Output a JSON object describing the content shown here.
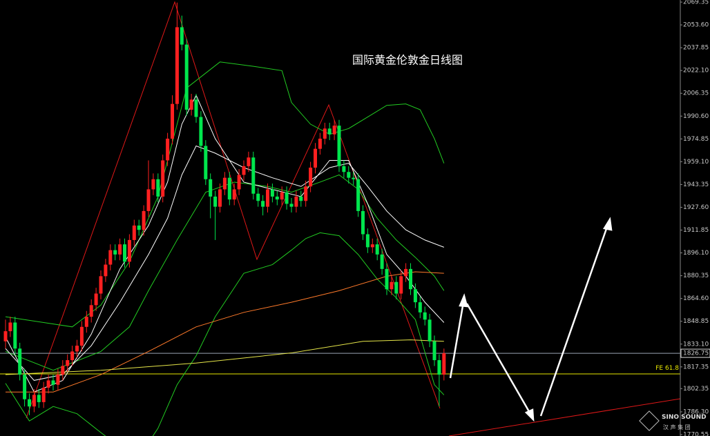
{
  "chart_data": {
    "type": "candlestick",
    "title": "国际黄金伦敦金日线图",
    "ylim": [
      1769.6,
      2070.8
    ],
    "yticks": [
      {
        "value": 2069.35,
        "label": "2069.35"
      },
      {
        "value": 2053.6,
        "label": "2053.60"
      },
      {
        "value": 2037.85,
        "label": "2037.85"
      },
      {
        "value": 2022.1,
        "label": "2022.10"
      },
      {
        "value": 2006.35,
        "label": "2006.35"
      },
      {
        "value": 1990.6,
        "label": "1990.60"
      },
      {
        "value": 1974.85,
        "label": "1974.85"
      },
      {
        "value": 1959.1,
        "label": "1959.10"
      },
      {
        "value": 1943.35,
        "label": "1943.35"
      },
      {
        "value": 1927.6,
        "label": "1927.60"
      },
      {
        "value": 1911.85,
        "label": "1911.85"
      },
      {
        "value": 1896.1,
        "label": "1896.10"
      },
      {
        "value": 1880.35,
        "label": "1880.35"
      },
      {
        "value": 1864.6,
        "label": "1864.60"
      },
      {
        "value": 1848.85,
        "label": "1848.85"
      },
      {
        "value": 1833.1,
        "label": "1833.10"
      },
      {
        "value": 1817.35,
        "label": "1817.35"
      },
      {
        "value": 1802.35,
        "label": "1802.35"
      },
      {
        "value": 1786.3,
        "label": "1786.30"
      },
      {
        "value": 1770.55,
        "label": "1770.55"
      }
    ],
    "up_color": "#ff2020",
    "down_color": "#00e64d",
    "open": [
      1835,
      1842,
      1848,
      1830,
      1812,
      1795,
      1790,
      1798,
      1793,
      1803,
      1808,
      1805,
      1812,
      1818,
      1822,
      1828,
      1832,
      1845,
      1852,
      1860,
      1868,
      1880,
      1888,
      1898,
      1895,
      1902,
      1890,
      1905,
      1915,
      1912,
      1925,
      1940,
      1947,
      1935,
      1960,
      1975,
      1999,
      2052,
      2040,
      1995,
      2002,
      1990,
      1970,
      1947,
      1935,
      1928,
      1940,
      1948,
      1933,
      1940,
      1950,
      1956,
      1962,
      1937,
      1932,
      1928,
      1940,
      1935,
      1933,
      1938,
      1930,
      1928,
      1935,
      1932,
      1942,
      1955,
      1968,
      1975,
      1982,
      1978,
      1984,
      1956,
      1952,
      1948,
      1947,
      1925,
      1909,
      1900,
      1902,
      1895,
      1885,
      1871,
      1876,
      1868,
      1880,
      1885,
      1871,
      1862,
      1855,
      1850,
      1835,
      1822,
      1812
    ],
    "high": [
      1850,
      1852,
      1852,
      1834,
      1816,
      1799,
      1802,
      1802,
      1807,
      1812,
      1812,
      1816,
      1822,
      1826,
      1832,
      1836,
      1849,
      1856,
      1864,
      1872,
      1884,
      1892,
      1902,
      1902,
      1906,
      1906,
      1909,
      1919,
      1919,
      1929,
      1960,
      1951,
      1951,
      1964,
      1979,
      2005,
      2069,
      2060,
      2044,
      2006,
      2006,
      1994,
      1974,
      1951,
      1939,
      1944,
      1952,
      1952,
      1944,
      1954,
      1960,
      1966,
      1966,
      1941,
      1936,
      1944,
      1944,
      1939,
      1942,
      1942,
      1934,
      1939,
      1939,
      1946,
      1959,
      1972,
      1979,
      1986,
      1986,
      1988,
      1988,
      1960,
      1956,
      1952,
      1951,
      1929,
      1913,
      1906,
      1906,
      1899,
      1889,
      1880,
      1880,
      1884,
      1889,
      1889,
      1875,
      1866,
      1859,
      1854,
      1839,
      1826,
      1830
    ],
    "low": [
      1830,
      1838,
      1826,
      1808,
      1790,
      1784,
      1786,
      1789,
      1789,
      1799,
      1801,
      1801,
      1808,
      1814,
      1818,
      1824,
      1828,
      1841,
      1848,
      1856,
      1864,
      1876,
      1884,
      1891,
      1891,
      1886,
      1886,
      1901,
      1908,
      1908,
      1921,
      1936,
      1931,
      1931,
      1956,
      1971,
      1995,
      2036,
      1991,
      1991,
      1986,
      1966,
      1943,
      1920,
      1905,
      1924,
      1936,
      1929,
      1929,
      1936,
      1946,
      1952,
      1933,
      1928,
      1922,
      1924,
      1931,
      1929,
      1929,
      1926,
      1924,
      1924,
      1928,
      1928,
      1938,
      1951,
      1964,
      1971,
      1974,
      1974,
      1952,
      1948,
      1944,
      1943,
      1921,
      1905,
      1896,
      1896,
      1891,
      1881,
      1867,
      1867,
      1864,
      1864,
      1876,
      1867,
      1858,
      1851,
      1846,
      1831,
      1818,
      1790,
      1808
    ],
    "close": [
      1842,
      1848,
      1830,
      1812,
      1795,
      1790,
      1798,
      1793,
      1803,
      1808,
      1805,
      1812,
      1818,
      1822,
      1828,
      1832,
      1845,
      1852,
      1860,
      1868,
      1880,
      1888,
      1898,
      1895,
      1902,
      1890,
      1905,
      1915,
      1912,
      1925,
      1940,
      1947,
      1935,
      1960,
      1975,
      1999,
      2052,
      2040,
      1995,
      2002,
      1990,
      1970,
      1947,
      1935,
      1928,
      1940,
      1948,
      1933,
      1940,
      1950,
      1956,
      1962,
      1937,
      1932,
      1928,
      1940,
      1935,
      1933,
      1938,
      1930,
      1928,
      1935,
      1932,
      1942,
      1955,
      1968,
      1975,
      1982,
      1978,
      1984,
      1956,
      1952,
      1948,
      1947,
      1925,
      1909,
      1900,
      1902,
      1895,
      1885,
      1871,
      1876,
      1868,
      1880,
      1885,
      1871,
      1862,
      1855,
      1850,
      1835,
      1822,
      1812,
      1826.75
    ],
    "lines": [
      {
        "color": "#22cc22",
        "x": [
          0,
          8,
          14,
          20,
          26,
          32,
          38,
          45,
          52,
          58,
          60,
          64,
          68,
          72,
          76,
          80,
          84,
          87,
          90,
          92
        ],
        "values": [
          1852,
          1848,
          1845,
          1860,
          1890,
          1935,
          2010,
          2028,
          2025,
          2022,
          2000,
          1985,
          1978,
          1982,
          1990,
          1998,
          1999,
          1995,
          1975,
          1958
        ]
      },
      {
        "color": "#22cc22",
        "x": [
          0,
          5,
          10,
          15,
          20,
          24,
          28,
          32,
          36,
          40,
          44,
          50,
          56,
          60,
          63,
          66,
          70,
          74,
          78,
          82,
          86,
          90,
          92
        ],
        "values": [
          1806,
          1780,
          1790,
          1785,
          1772,
          1762,
          1755,
          1775,
          1805,
          1825,
          1852,
          1882,
          1888,
          1898,
          1906,
          1910,
          1908,
          1895,
          1878,
          1865,
          1850,
          1805,
          1798
        ]
      },
      {
        "color": "#22cc22",
        "x": [
          0,
          10,
          20,
          26,
          30,
          36,
          42,
          48,
          55,
          60,
          66,
          70,
          74,
          78,
          82,
          86,
          90,
          92
        ],
        "values": [
          1828,
          1815,
          1828,
          1845,
          1870,
          1905,
          1938,
          1945,
          1942,
          1938,
          1945,
          1950,
          1940,
          1920,
          1905,
          1893,
          1880,
          1870
        ]
      },
      {
        "color": "#ffffff",
        "x": [
          0,
          6,
          12,
          18,
          24,
          30,
          34,
          37,
          40,
          44,
          50,
          56,
          62,
          68,
          72,
          76,
          80,
          84,
          88,
          92
        ],
        "values": [
          1838,
          1800,
          1808,
          1840,
          1885,
          1915,
          1945,
          1985,
          2005,
          1975,
          1945,
          1940,
          1935,
          1960,
          1960,
          1930,
          1895,
          1880,
          1862,
          1848
        ]
      },
      {
        "color": "#ffffff",
        "x": [
          0,
          6,
          12,
          18,
          24,
          30,
          34,
          37,
          40,
          44,
          50,
          56,
          62,
          68,
          72,
          76,
          80,
          84,
          88,
          92
        ],
        "values": [
          1830,
          1808,
          1812,
          1832,
          1862,
          1895,
          1920,
          1950,
          1970,
          1965,
          1955,
          1948,
          1942,
          1955,
          1958,
          1942,
          1925,
          1912,
          1905,
          1900
        ]
      },
      {
        "color": "#ff7a2a",
        "x": [
          0,
          10,
          20,
          30,
          40,
          50,
          60,
          70,
          80,
          86,
          92
        ],
        "values": [
          1800,
          1800,
          1812,
          1828,
          1845,
          1855,
          1862,
          1870,
          1880,
          1883,
          1882
        ]
      },
      {
        "color": "#e8e84a",
        "x": [
          0,
          20,
          40,
          60,
          75,
          85,
          92
        ],
        "values": [
          1812,
          1815,
          1820,
          1827,
          1835,
          1836,
          1835
        ]
      }
    ],
    "last_price": {
      "value": 1826.75,
      "label": "1826.75"
    },
    "fibo": {
      "value": 1812.5,
      "label": "FE 61.8",
      "color": "#e8e800"
    },
    "logo": {
      "name": "SINO SOUND",
      "subtitle": "汉 声 集 团"
    }
  }
}
